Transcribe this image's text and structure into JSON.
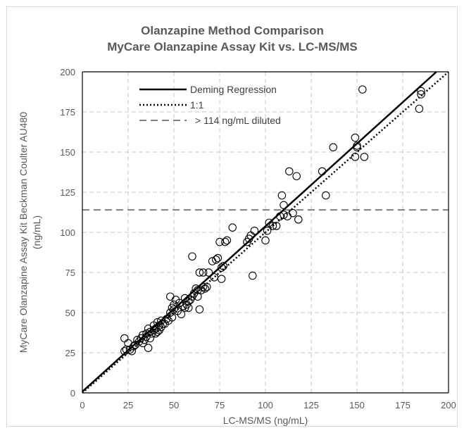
{
  "chart_data": {
    "type": "scatter",
    "title": "Olanzapine Method Comparison",
    "subtitle": "MyCare Olanzapine Assay Kit vs. LC-MS/MS",
    "xlabel": "LC-MS/MS (ng/mL)",
    "ylabel_line1": "MyCare Olanzapine Assay Kit Beckman Coulter AU480",
    "ylabel_line2": "(ng/mL)",
    "xlim": [
      0,
      200
    ],
    "ylim": [
      0,
      200
    ],
    "x_ticks": [
      0,
      25,
      50,
      75,
      100,
      125,
      150,
      175,
      200
    ],
    "y_ticks": [
      0,
      25,
      50,
      75,
      100,
      125,
      150,
      175,
      200
    ],
    "grid": true,
    "legend_position": "top-left",
    "legend": {
      "deming": "Deming Regression",
      "identity": "1:1",
      "threshold": "> 114 ng/mL diluted"
    },
    "deming_regression": {
      "slope": 1.03,
      "intercept": 0.8
    },
    "identity_line": {
      "slope": 1,
      "intercept": 0
    },
    "threshold_y": 114,
    "points": [
      {
        "x": 23,
        "y": 26
      },
      {
        "x": 23,
        "y": 34
      },
      {
        "x": 24,
        "y": 27
      },
      {
        "x": 25,
        "y": 31
      },
      {
        "x": 26,
        "y": 27
      },
      {
        "x": 27,
        "y": 26
      },
      {
        "x": 28,
        "y": 29
      },
      {
        "x": 29,
        "y": 30
      },
      {
        "x": 30,
        "y": 33
      },
      {
        "x": 31,
        "y": 32
      },
      {
        "x": 32,
        "y": 34
      },
      {
        "x": 33,
        "y": 31
      },
      {
        "x": 33,
        "y": 36
      },
      {
        "x": 34,
        "y": 33
      },
      {
        "x": 35,
        "y": 35
      },
      {
        "x": 35,
        "y": 37
      },
      {
        "x": 36,
        "y": 28
      },
      {
        "x": 36,
        "y": 40
      },
      {
        "x": 37,
        "y": 34
      },
      {
        "x": 37,
        "y": 38
      },
      {
        "x": 38,
        "y": 37
      },
      {
        "x": 39,
        "y": 39
      },
      {
        "x": 39,
        "y": 42
      },
      {
        "x": 40,
        "y": 37
      },
      {
        "x": 40,
        "y": 40
      },
      {
        "x": 41,
        "y": 44
      },
      {
        "x": 41,
        "y": 38
      },
      {
        "x": 42,
        "y": 42
      },
      {
        "x": 42,
        "y": 39
      },
      {
        "x": 43,
        "y": 45
      },
      {
        "x": 43,
        "y": 41
      },
      {
        "x": 44,
        "y": 43
      },
      {
        "x": 45,
        "y": 43
      },
      {
        "x": 46,
        "y": 46
      },
      {
        "x": 47,
        "y": 45
      },
      {
        "x": 48,
        "y": 50
      },
      {
        "x": 48,
        "y": 60
      },
      {
        "x": 49,
        "y": 53
      },
      {
        "x": 49,
        "y": 47
      },
      {
        "x": 50,
        "y": 52
      },
      {
        "x": 50,
        "y": 55
      },
      {
        "x": 51,
        "y": 58
      },
      {
        "x": 52,
        "y": 51
      },
      {
        "x": 53,
        "y": 56
      },
      {
        "x": 54,
        "y": 49
      },
      {
        "x": 55,
        "y": 54
      },
      {
        "x": 56,
        "y": 53
      },
      {
        "x": 56,
        "y": 59
      },
      {
        "x": 57,
        "y": 55
      },
      {
        "x": 58,
        "y": 53
      },
      {
        "x": 58,
        "y": 57
      },
      {
        "x": 59,
        "y": 58
      },
      {
        "x": 60,
        "y": 60
      },
      {
        "x": 60,
        "y": 85
      },
      {
        "x": 61,
        "y": 62
      },
      {
        "x": 62,
        "y": 65
      },
      {
        "x": 63,
        "y": 64
      },
      {
        "x": 63,
        "y": 60
      },
      {
        "x": 64,
        "y": 52
      },
      {
        "x": 64,
        "y": 75
      },
      {
        "x": 65,
        "y": 64
      },
      {
        "x": 66,
        "y": 66
      },
      {
        "x": 66,
        "y": 75
      },
      {
        "x": 67,
        "y": 65
      },
      {
        "x": 68,
        "y": 66
      },
      {
        "x": 69,
        "y": 75
      },
      {
        "x": 71,
        "y": 82
      },
      {
        "x": 72,
        "y": 72
      },
      {
        "x": 73,
        "y": 83
      },
      {
        "x": 74,
        "y": 84
      },
      {
        "x": 75,
        "y": 94
      },
      {
        "x": 76,
        "y": 71
      },
      {
        "x": 76,
        "y": 78
      },
      {
        "x": 77,
        "y": 79
      },
      {
        "x": 78,
        "y": 94
      },
      {
        "x": 79,
        "y": 95
      },
      {
        "x": 82,
        "y": 103
      },
      {
        "x": 90,
        "y": 94
      },
      {
        "x": 91,
        "y": 96
      },
      {
        "x": 92,
        "y": 98
      },
      {
        "x": 93,
        "y": 73
      },
      {
        "x": 94,
        "y": 101
      },
      {
        "x": 100,
        "y": 95
      },
      {
        "x": 101,
        "y": 101
      },
      {
        "x": 102,
        "y": 106
      },
      {
        "x": 104,
        "y": 104
      },
      {
        "x": 106,
        "y": 104
      },
      {
        "x": 108,
        "y": 110
      },
      {
        "x": 109,
        "y": 123
      },
      {
        "x": 110,
        "y": 111
      },
      {
        "x": 110,
        "y": 117
      },
      {
        "x": 112,
        "y": 110
      },
      {
        "x": 113,
        "y": 138
      },
      {
        "x": 115,
        "y": 112
      },
      {
        "x": 117,
        "y": 135
      },
      {
        "x": 118,
        "y": 108
      },
      {
        "x": 131,
        "y": 138
      },
      {
        "x": 133,
        "y": 123
      },
      {
        "x": 137,
        "y": 153
      },
      {
        "x": 149,
        "y": 159
      },
      {
        "x": 149,
        "y": 147
      },
      {
        "x": 150,
        "y": 153
      },
      {
        "x": 150,
        "y": 154
      },
      {
        "x": 153,
        "y": 189
      },
      {
        "x": 154,
        "y": 147
      },
      {
        "x": 184,
        "y": 177
      },
      {
        "x": 185,
        "y": 188
      },
      {
        "x": 185,
        "y": 186
      }
    ]
  }
}
